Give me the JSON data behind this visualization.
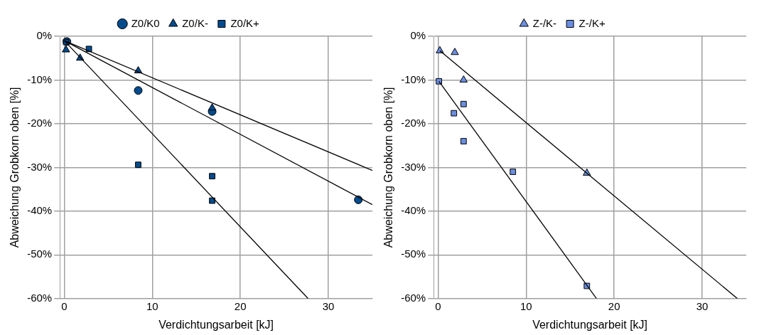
{
  "chart_data": [
    {
      "type": "scatter",
      "xlabel": "Verdichtungsarbeit [kJ]",
      "ylabel": "Abweichung Grobkorn oben [%]",
      "xlim": [
        -0.5,
        35
      ],
      "xticks": [
        0,
        10,
        20,
        30
      ],
      "ylim": [
        -60,
        0
      ],
      "yticks": [
        {
          "value": -60,
          "label": "-60%"
        },
        {
          "value": -50,
          "label": "-50%"
        },
        {
          "value": -40,
          "label": "-40%"
        },
        {
          "value": -30,
          "label": "-30%"
        },
        {
          "value": -20,
          "label": "-20%"
        },
        {
          "value": -10,
          "label": "-10%"
        },
        {
          "value": 0,
          "label": "0%"
        }
      ],
      "grid": true,
      "legend": "top",
      "series": [
        {
          "name": "Z0/K0",
          "color": "#004b8d",
          "marker": "circle",
          "x": [
            0.3,
            8.4,
            16.8,
            33.4
          ],
          "values": [
            -1.2,
            -12.4,
            -17.2,
            -37.4
          ]
        },
        {
          "name": "Z0/K-",
          "color": "#004b8d",
          "marker": "triangle",
          "x": [
            0.2,
            1.8,
            8.4,
            16.8
          ],
          "values": [
            -3.1,
            -5,
            -7.9,
            -16.4
          ]
        },
        {
          "name": "Z0/K+",
          "color": "#004b8d",
          "marker": "square",
          "x": [
            0.2,
            2.8,
            8.4,
            16.8,
            16.8
          ],
          "values": [
            -1.3,
            -2.9,
            -29.4,
            -32,
            -37.6
          ]
        },
        {
          "type": "line",
          "color": "#000000",
          "marker": "none",
          "x": [
            0,
            35
          ],
          "values": [
            -1,
            -38.5
          ]
        },
        {
          "type": "line",
          "color": "#000000",
          "marker": "none",
          "x": [
            0,
            35
          ],
          "values": [
            -1,
            -30.7
          ]
        },
        {
          "type": "line",
          "color": "#000000",
          "marker": "none",
          "x": [
            0,
            27.7
          ],
          "values": [
            -1,
            -60
          ]
        }
      ]
    },
    {
      "type": "scatter",
      "xlabel": "Verdichtungsarbeit [kJ]",
      "ylabel": "Abweichung Grobkorn oben [%]",
      "xlim": [
        -0.5,
        35
      ],
      "xticks": [
        0,
        10,
        20,
        30
      ],
      "ylim": [
        -60,
        0
      ],
      "yticks": [
        {
          "value": -60,
          "label": "-60%"
        },
        {
          "value": -50,
          "label": "-50%"
        },
        {
          "value": -40,
          "label": "-40%"
        },
        {
          "value": -30,
          "label": "-30%"
        },
        {
          "value": -20,
          "label": "-20%"
        },
        {
          "value": -10,
          "label": "-10%"
        },
        {
          "value": 0,
          "label": "0%"
        }
      ],
      "grid": true,
      "legend": "top",
      "series": [
        {
          "name": "Z-/K-",
          "color": "#6a8ee0",
          "marker": "triangle",
          "x": [
            0.2,
            1.9,
            2.9,
            16.9
          ],
          "values": [
            -3.3,
            -3.7,
            -10,
            -31.3
          ]
        },
        {
          "name": "Z-/K+",
          "color": "#6a8ee0",
          "marker": "square",
          "x": [
            0.1,
            1.8,
            2.9,
            2.9,
            8.5,
            16.9
          ],
          "values": [
            -10.3,
            -17.6,
            -15.5,
            -24,
            -31,
            -57.1
          ]
        },
        {
          "type": "line",
          "color": "#000000",
          "marker": "none",
          "x": [
            0.2,
            34
          ],
          "values": [
            -3.3,
            -60
          ]
        },
        {
          "type": "line",
          "color": "#000000",
          "marker": "none",
          "x": [
            0.1,
            18
          ],
          "values": [
            -10.3,
            -60
          ]
        }
      ]
    }
  ]
}
